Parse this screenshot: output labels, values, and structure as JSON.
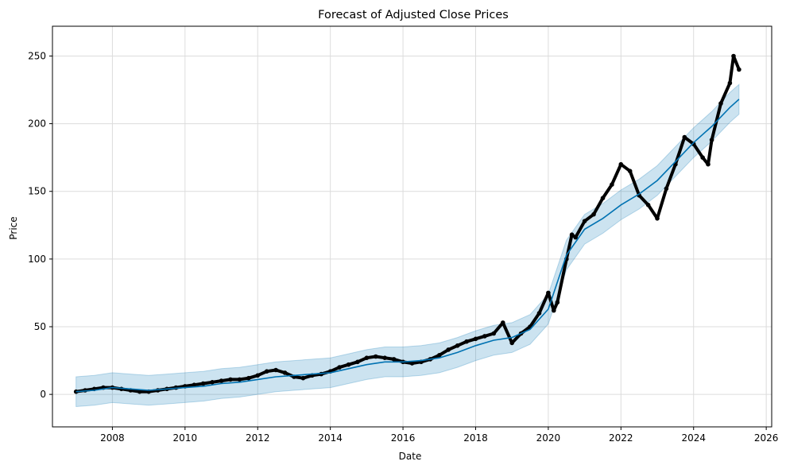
{
  "chart_data": {
    "type": "line",
    "title": "Forecast of Adjusted Close Prices",
    "xlabel": "Date",
    "ylabel": "Price",
    "xlim": [
      2006.35,
      2026.15
    ],
    "ylim": [
      -24,
      272
    ],
    "x_ticks": [
      2008,
      2010,
      2012,
      2014,
      2016,
      2018,
      2020,
      2022,
      2024,
      2026
    ],
    "y_ticks": [
      0,
      50,
      100,
      150,
      200,
      250
    ],
    "grid": true,
    "colors": {
      "forecast": "#0072B2",
      "band": "#0072B2",
      "actual": "#000000"
    },
    "forecast": {
      "x": [
        2007.0,
        2007.5,
        2008.0,
        2008.5,
        2009.0,
        2009.5,
        2010.0,
        2010.5,
        2011.0,
        2011.5,
        2012.0,
        2012.5,
        2013.0,
        2013.5,
        2014.0,
        2014.5,
        2015.0,
        2015.5,
        2016.0,
        2016.5,
        2017.0,
        2017.5,
        2018.0,
        2018.5,
        2019.0,
        2019.5,
        2020.0,
        2020.5,
        2021.0,
        2021.5,
        2022.0,
        2022.5,
        2023.0,
        2023.5,
        2024.0,
        2024.5,
        2025.0,
        2025.25
      ],
      "yhat": [
        2,
        3,
        5,
        4,
        3,
        4,
        5,
        6,
        8,
        9,
        11,
        13,
        14,
        15,
        16,
        19,
        22,
        24,
        24,
        25,
        27,
        31,
        36,
        40,
        42,
        48,
        63,
        103,
        122,
        130,
        140,
        148,
        158,
        172,
        186,
        198,
        212,
        218
      ],
      "lower": [
        -9,
        -8,
        -6,
        -7,
        -8,
        -7,
        -6,
        -5,
        -3,
        -2,
        0,
        2,
        3,
        4,
        5,
        8,
        11,
        13,
        13,
        14,
        16,
        20,
        25,
        29,
        31,
        37,
        52,
        92,
        111,
        119,
        129,
        137,
        147,
        161,
        175,
        187,
        201,
        207
      ],
      "upper": [
        13,
        14,
        16,
        15,
        14,
        15,
        16,
        17,
        19,
        20,
        22,
        24,
        25,
        26,
        27,
        30,
        33,
        35,
        35,
        36,
        38,
        42,
        47,
        51,
        53,
        59,
        74,
        114,
        133,
        141,
        151,
        159,
        169,
        183,
        197,
        209,
        223,
        229
      ]
    },
    "actual": {
      "x": [
        2007.0,
        2007.25,
        2007.5,
        2007.75,
        2008.0,
        2008.25,
        2008.5,
        2008.75,
        2009.0,
        2009.25,
        2009.5,
        2009.75,
        2010.0,
        2010.25,
        2010.5,
        2010.75,
        2011.0,
        2011.25,
        2011.5,
        2011.75,
        2012.0,
        2012.25,
        2012.5,
        2012.75,
        2013.0,
        2013.25,
        2013.5,
        2013.75,
        2014.0,
        2014.25,
        2014.5,
        2014.75,
        2015.0,
        2015.25,
        2015.5,
        2015.75,
        2016.0,
        2016.25,
        2016.5,
        2016.75,
        2017.0,
        2017.25,
        2017.5,
        2017.75,
        2018.0,
        2018.25,
        2018.5,
        2018.75,
        2019.0,
        2019.25,
        2019.5,
        2019.75,
        2020.0,
        2020.15,
        2020.25,
        2020.5,
        2020.65,
        2020.75,
        2021.0,
        2021.25,
        2021.5,
        2021.75,
        2022.0,
        2022.25,
        2022.5,
        2022.75,
        2023.0,
        2023.25,
        2023.5,
        2023.75,
        2024.0,
        2024.25,
        2024.4,
        2024.5,
        2024.75,
        2025.0,
        2025.1,
        2025.25
      ],
      "y": [
        2,
        3,
        4,
        5,
        5,
        4,
        3,
        2,
        2,
        3,
        4,
        5,
        6,
        7,
        8,
        9,
        10,
        11,
        11,
        12,
        14,
        17,
        18,
        16,
        13,
        12,
        14,
        15,
        17,
        20,
        22,
        24,
        27,
        28,
        27,
        26,
        24,
        23,
        24,
        26,
        29,
        33,
        36,
        39,
        41,
        43,
        45,
        53,
        38,
        45,
        50,
        60,
        75,
        62,
        68,
        100,
        118,
        116,
        128,
        133,
        145,
        155,
        170,
        165,
        147,
        140,
        130,
        152,
        170,
        190,
        185,
        175,
        170,
        188,
        215,
        230,
        250,
        240
      ]
    }
  }
}
